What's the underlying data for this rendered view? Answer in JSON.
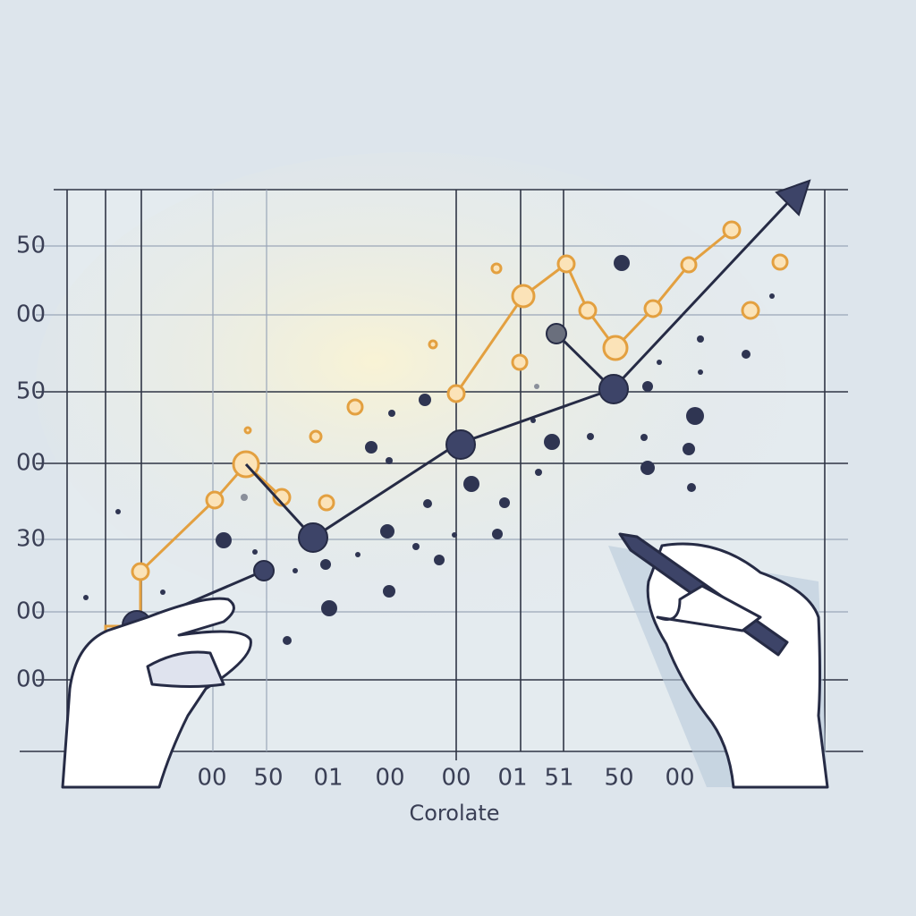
{
  "y_labels": [
    "50",
    "00",
    "50",
    "00",
    "30",
    "00",
    "00"
  ],
  "x_labels": [
    "00",
    "50",
    "01",
    "00",
    "00",
    "01",
    "51",
    "50",
    "00"
  ],
  "axis_title": "Corolate"
}
